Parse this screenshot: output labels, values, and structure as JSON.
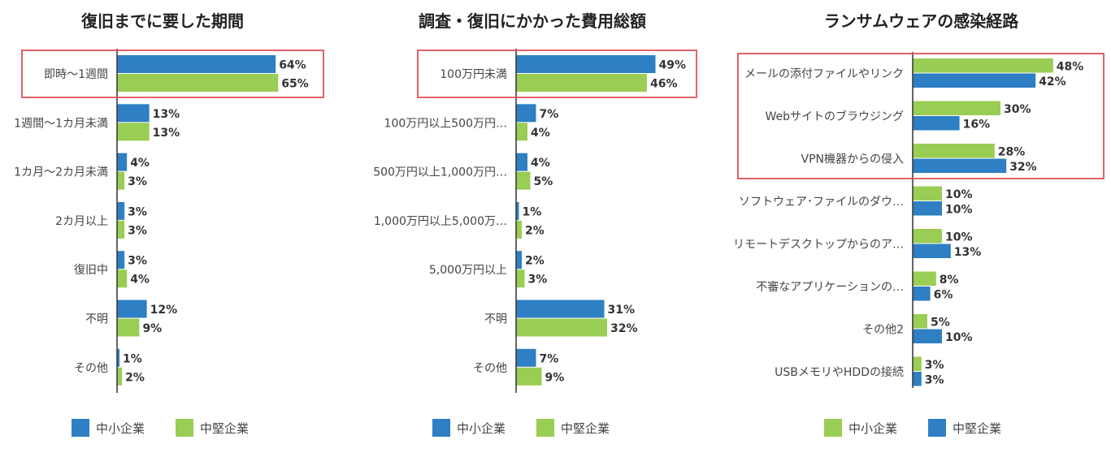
{
  "colors": {
    "blue": "#2e7fc3",
    "green": "#9acd53",
    "highlight": "#e0505c",
    "axis": "#333333"
  },
  "chart_data": [
    {
      "type": "bar",
      "orientation": "horizontal",
      "title": "復旧までに要した期間",
      "categories": [
        "即時〜1週間",
        "1週間〜1カ月未満",
        "1カ月〜2カ月未満",
        "2カ月以上",
        "復旧中",
        "不明",
        "その他"
      ],
      "series": [
        {
          "name": "中小企業",
          "color": "blue",
          "values": [
            64,
            13,
            4,
            3,
            3,
            12,
            1
          ],
          "labels": [
            "64%",
            "13%",
            "4%",
            "3%",
            "3%",
            "12%",
            "1%"
          ]
        },
        {
          "name": "中堅企業",
          "color": "green",
          "values": [
            65,
            13,
            3,
            3,
            4,
            9,
            2
          ],
          "labels": [
            "65%",
            "13%",
            "3%",
            "3%",
            "4%",
            "9%",
            "2%"
          ]
        }
      ],
      "highlighted_categories": [
        0
      ],
      "legend": [
        "中小企業",
        "中堅企業"
      ],
      "legend_placement": "bottom"
    },
    {
      "type": "bar",
      "orientation": "horizontal",
      "title": "調査・復旧にかかった費用総額",
      "categories": [
        "100万円未満",
        "100万円以上500万円…",
        "500万円以上1,000万円…",
        "1,000万円以上5,000万…",
        "5,000万円以上",
        "不明",
        "その他"
      ],
      "series": [
        {
          "name": "中小企業",
          "color": "blue",
          "values": [
            49,
            7,
            4,
            1,
            2,
            31,
            7
          ],
          "labels": [
            "49%",
            "7%",
            "4%",
            "1%",
            "2%",
            "31%",
            "7%"
          ]
        },
        {
          "name": "中堅企業",
          "color": "green",
          "values": [
            46,
            4,
            5,
            2,
            3,
            32,
            9
          ],
          "labels": [
            "46%",
            "4%",
            "5%",
            "2%",
            "3%",
            "32%",
            "9%"
          ]
        }
      ],
      "highlighted_categories": [
        0
      ],
      "legend": [
        "中小企業",
        "中堅企業"
      ],
      "legend_placement": "bottom"
    },
    {
      "type": "bar",
      "orientation": "horizontal",
      "title": "ランサムウェアの感染経路",
      "categories": [
        "メールの添付ファイルやリンク",
        "Webサイトのブラウジング",
        "VPN機器からの侵入",
        "ソフトウェア･ファイルのダウ…",
        "リモートデスクトップからのア…",
        "不審なアプリケーションの…",
        "その他2",
        "USBメモリやHDDの接続"
      ],
      "series": [
        {
          "name": "中小企業",
          "color": "green",
          "values": [
            48,
            30,
            28,
            10,
            10,
            8,
            5,
            3
          ],
          "labels": [
            "48%",
            "30%",
            "28%",
            "10%",
            "10%",
            "8%",
            "5%",
            "3%"
          ]
        },
        {
          "name": "中堅企業",
          "color": "blue",
          "values": [
            42,
            16,
            32,
            10,
            13,
            6,
            10,
            3
          ],
          "labels": [
            "42%",
            "16%",
            "32%",
            "10%",
            "13%",
            "6%",
            "10%",
            "3%"
          ]
        }
      ],
      "highlighted_categories": [
        0,
        1,
        2
      ],
      "legend": [
        "中小企業",
        "中堅企業"
      ],
      "legend_placement": "bottom"
    }
  ]
}
